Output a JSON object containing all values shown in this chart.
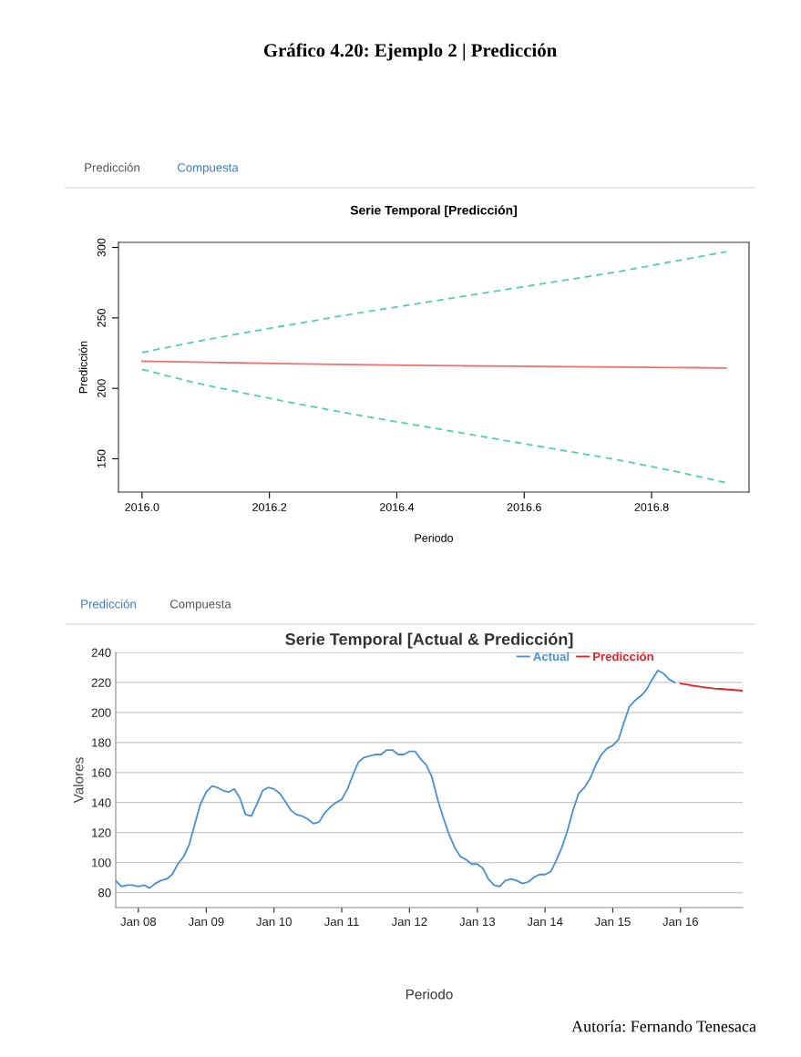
{
  "chart_data": [
    {
      "type": "line",
      "title": "Serie Temporal [Predicción]",
      "xlabel": "Periodo",
      "ylabel": "Predicción",
      "annotations": [
        "Gráfico 4.20: Ejemplo 2 | Predicción",
        "Predicción",
        "Compuesta"
      ],
      "xlim": [
        2015.963,
        2016.953
      ],
      "xticks": [
        {
          "value": 2016.0,
          "label": "2016.0"
        },
        2016.2,
        2016.4,
        2016.6,
        2016.8
      ],
      "ylim": [
        126.4,
        303.6
      ],
      "yticks": [
        150,
        200,
        250,
        300
      ],
      "grid": false,
      "legend": false,
      "marker": "none",
      "series": [
        {
          "color": "#f07070",
          "line_style": "solid",
          "x": [
            2016.0,
            2016.083,
            2016.167,
            2016.25,
            2016.333,
            2016.417,
            2016.5,
            2016.583,
            2016.667,
            2016.75,
            2016.833,
            2016.917
          ],
          "values": [
            219.3,
            218.7,
            218.0,
            217.4,
            216.9,
            216.4,
            216.0,
            215.7,
            215.4,
            215.1,
            214.8,
            214.5
          ]
        },
        {
          "color": "#4fd1b0",
          "line_style": "dashed",
          "x": [
            2016.0,
            2016.083,
            2016.167,
            2016.25,
            2016.333,
            2016.417,
            2016.5,
            2016.583,
            2016.667,
            2016.75,
            2016.833,
            2016.917
          ],
          "values": [
            225.5,
            233,
            240,
            246.5,
            253,
            259,
            265,
            271,
            277,
            283,
            290,
            297
          ]
        },
        {
          "color": "#4fd1b0",
          "line_style": "dashed",
          "x": [
            2016.0,
            2016.083,
            2016.167,
            2016.25,
            2016.333,
            2016.417,
            2016.5,
            2016.583,
            2016.667,
            2016.75,
            2016.833,
            2016.917
          ],
          "values": [
            213.5,
            204,
            196,
            188.5,
            181.5,
            175,
            168.5,
            162,
            155.5,
            149,
            141.5,
            133
          ]
        }
      ]
    },
    {
      "type": "line",
      "title": "Serie Temporal [Actual & Predicción]",
      "xlabel": "Periodo",
      "ylabel": "Valores",
      "annotations": [
        "Predicción",
        "Compuesta",
        "Autoría: Fernando Tenesaca"
      ],
      "xlim": [
        "2007-09",
        "2016-12"
      ],
      "xticks": [
        {
          "value": "2008-01",
          "label": "Jan 08"
        },
        {
          "value": "2009-01",
          "label": "Jan 09"
        },
        {
          "value": "2010-01",
          "label": "Jan 10"
        },
        {
          "value": "2011-01",
          "label": "Jan 11"
        },
        {
          "value": "2012-01",
          "label": "Jan 12"
        },
        {
          "value": "2013-01",
          "label": "Jan 13"
        },
        {
          "value": "2014-01",
          "label": "Jan 14"
        },
        {
          "value": "2015-01",
          "label": "Jan 15"
        },
        {
          "value": "2016-01",
          "label": "Jan 16"
        }
      ],
      "ylim": [
        70,
        240
      ],
      "yticks": [
        80,
        100,
        120,
        140,
        160,
        180,
        200,
        220,
        240
      ],
      "grid": "y",
      "legend": "top right",
      "marker": "none",
      "series": [
        {
          "name": "Actual",
          "color": "#4a90d0",
          "line_style": "solid",
          "x": [
            "2007-09",
            "2007-10",
            "2007-11",
            "2007-12",
            "2008-01",
            "2008-02",
            "2008-03",
            "2008-04",
            "2008-05",
            "2008-06",
            "2008-07",
            "2008-08",
            "2008-09",
            "2008-10",
            "2008-11",
            "2008-12",
            "2009-01",
            "2009-02",
            "2009-03",
            "2009-04",
            "2009-05",
            "2009-06",
            "2009-07",
            "2009-08",
            "2009-09",
            "2009-10",
            "2009-11",
            "2009-12",
            "2010-01",
            "2010-02",
            "2010-03",
            "2010-04",
            "2010-05",
            "2010-06",
            "2010-07",
            "2010-08",
            "2010-09",
            "2010-10",
            "2010-11",
            "2010-12",
            "2011-01",
            "2011-02",
            "2011-03",
            "2011-04",
            "2011-05",
            "2011-06",
            "2011-07",
            "2011-08",
            "2011-09",
            "2011-10",
            "2011-11",
            "2011-12",
            "2012-01",
            "2012-02",
            "2012-03",
            "2012-04",
            "2012-05",
            "2012-06",
            "2012-07",
            "2012-08",
            "2012-09",
            "2012-10",
            "2012-11",
            "2012-12",
            "2013-01",
            "2013-02",
            "2013-03",
            "2013-04",
            "2013-05",
            "2013-06",
            "2013-07",
            "2013-08",
            "2013-09",
            "2013-10",
            "2013-11",
            "2013-12",
            "2014-01",
            "2014-02",
            "2014-03",
            "2014-04",
            "2014-05",
            "2014-06",
            "2014-07",
            "2014-08",
            "2014-09",
            "2014-10",
            "2014-11",
            "2014-12",
            "2015-01",
            "2015-02",
            "2015-03",
            "2015-04",
            "2015-05",
            "2015-06",
            "2015-07",
            "2015-08",
            "2015-09",
            "2015-10",
            "2015-11",
            "2015-12"
          ],
          "values": [
            88,
            84,
            85,
            85,
            84,
            85,
            83,
            86,
            88,
            89,
            92,
            99,
            104,
            112,
            126,
            139,
            147,
            151,
            150,
            148,
            147,
            149,
            143,
            132,
            131,
            139,
            148,
            150,
            149,
            146,
            141,
            135,
            132,
            131,
            129,
            126,
            127,
            133,
            137,
            140,
            142,
            149,
            158,
            167,
            170,
            171,
            172,
            172,
            175,
            175,
            172,
            172,
            174,
            174,
            169,
            165,
            157,
            142,
            130,
            119,
            110,
            104,
            102,
            99,
            99,
            96,
            89,
            85,
            84,
            88,
            89,
            88,
            86,
            87,
            90,
            92,
            92,
            94,
            101,
            110,
            121,
            135,
            146,
            150,
            156,
            165,
            172,
            176,
            178,
            182,
            193,
            204,
            208,
            211,
            215,
            222,
            228,
            226,
            222,
            220
          ]
        },
        {
          "name": "Predicción",
          "color": "#e8202a",
          "line_style": "solid",
          "x": [
            "2016-01",
            "2016-02",
            "2016-03",
            "2016-04",
            "2016-05",
            "2016-06",
            "2016-07",
            "2016-08",
            "2016-09",
            "2016-10",
            "2016-11",
            "2016-12"
          ],
          "values": [
            219.3,
            218.7,
            218.0,
            217.4,
            216.9,
            216.4,
            216.0,
            215.7,
            215.4,
            215.1,
            214.8,
            214.5
          ]
        }
      ]
    }
  ]
}
